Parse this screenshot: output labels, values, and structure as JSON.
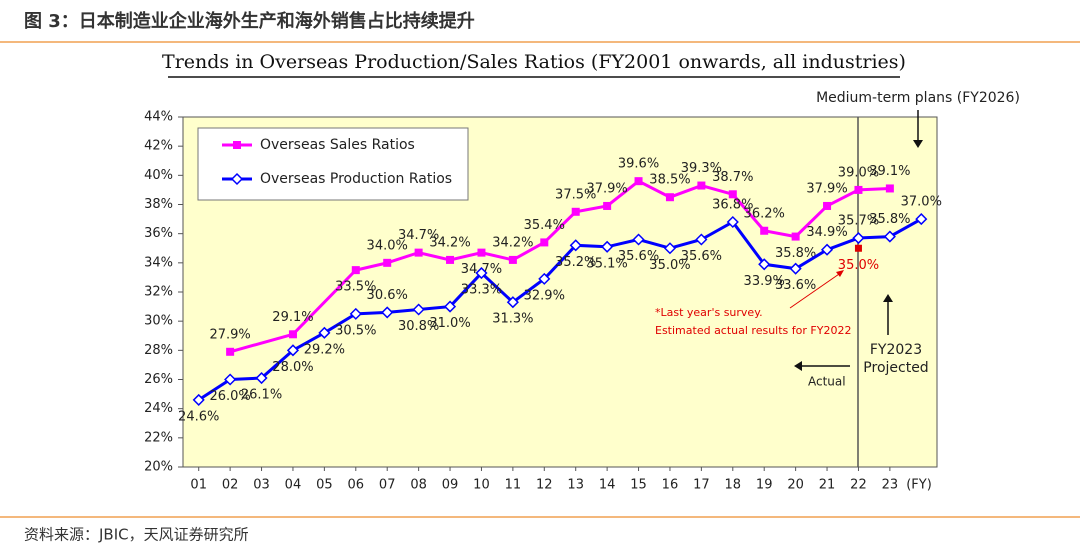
{
  "header": {
    "title": "图 3：日本制造业企业海外生产和海外销售占比持续提升"
  },
  "chart_data": {
    "type": "line",
    "title": "Trends in Overseas Production/Sales Ratios (FY2001 onwards, all industries)",
    "x_label": "(FY)",
    "xlim": [
      0.5,
      24.5
    ],
    "xticks": [
      {
        "value": 1,
        "label": "01"
      },
      {
        "value": 2,
        "label": "02"
      },
      {
        "value": 3,
        "label": "03"
      },
      {
        "value": 4,
        "label": "04"
      },
      {
        "value": 5,
        "label": "05"
      },
      {
        "value": 6,
        "label": "06"
      },
      {
        "value": 7,
        "label": "07"
      },
      {
        "value": 8,
        "label": "08"
      },
      {
        "value": 9,
        "label": "09"
      },
      10,
      11,
      12,
      13,
      14,
      15,
      16,
      17,
      18,
      19,
      20,
      21,
      22,
      23
    ],
    "ylim": [
      20,
      44
    ],
    "yticks": [
      {
        "value": 20,
        "label": "20%"
      },
      {
        "value": 22,
        "label": "22%"
      },
      {
        "value": 24,
        "label": "24%"
      },
      {
        "value": 26,
        "label": "26%"
      },
      {
        "value": 28,
        "label": "28%"
      },
      {
        "value": 30,
        "label": "30%"
      },
      {
        "value": 32,
        "label": "32%"
      },
      {
        "value": 34,
        "label": "34%"
      },
      {
        "value": 36,
        "label": "36%"
      },
      {
        "value": 38,
        "label": "38%"
      },
      {
        "value": 40,
        "label": "40%"
      },
      {
        "value": 42,
        "label": "42%"
      },
      {
        "value": 44,
        "label": "44%"
      }
    ],
    "series": [
      {
        "name": "Overseas Sales Ratios",
        "color": "#ff00ff",
        "x": [
          2,
          4,
          6,
          7,
          8,
          9,
          10,
          11,
          12,
          13,
          14,
          15,
          16,
          17,
          18,
          19,
          20,
          21,
          22,
          23
        ],
        "values": [
          27.9,
          29.1,
          33.5,
          34.0,
          34.7,
          34.2,
          34.7,
          34.2,
          35.4,
          37.5,
          37.9,
          39.6,
          38.5,
          39.3,
          38.7,
          36.2,
          35.8,
          37.9,
          39.0,
          39.1
        ],
        "value_labels": [
          "27.9%",
          "29.1%",
          "33.5%",
          "34.0%",
          "34.7%",
          "34.2%",
          "34.7%",
          "34.2%",
          "35.4%",
          "37.5%",
          "37.9%",
          "39.6%",
          "38.5%",
          "39.3%",
          "38.7%",
          "36.2%",
          "35.8%",
          "37.9%",
          "39.0%",
          "39.1%"
        ]
      },
      {
        "name": "Overseas Production Ratios",
        "color": "#0000ff",
        "x": [
          1,
          2,
          3,
          4,
          5,
          6,
          7,
          8,
          9,
          10,
          11,
          12,
          13,
          14,
          15,
          16,
          17,
          18,
          19,
          20,
          21,
          22,
          23,
          24
        ],
        "values": [
          24.6,
          26.0,
          26.1,
          28.0,
          29.2,
          30.5,
          30.6,
          30.8,
          31.0,
          33.3,
          31.3,
          32.9,
          35.2,
          35.1,
          35.6,
          35.0,
          35.6,
          36.8,
          33.9,
          33.6,
          34.9,
          35.7,
          35.8,
          37.0
        ],
        "value_labels": [
          "24.6%",
          "26.0%",
          "26.1%",
          "28.0%",
          "29.2%",
          "30.5%",
          "30.6%",
          "30.8%",
          "31.0%",
          "33.3%",
          "31.3%",
          "32.9%",
          "35.2%",
          "35.1%",
          "35.6%",
          "35.0%",
          "35.6%",
          "36.8%",
          "33.9%",
          "33.6%",
          "34.9%",
          "35.7%",
          "35.8%",
          "37.0%"
        ]
      }
    ],
    "survey_point": {
      "x": 22,
      "value": 35.0,
      "value_label": "35.0%",
      "color": "#e00000"
    },
    "annotations": [
      "Medium-term plans (FY2026)",
      "*Last year's survey.",
      "Estimated actual results for FY2022",
      "Actual",
      "FY2023",
      "Projected"
    ]
  },
  "footer": {
    "source": "资料来源：JBIC，天风证券研究所"
  }
}
